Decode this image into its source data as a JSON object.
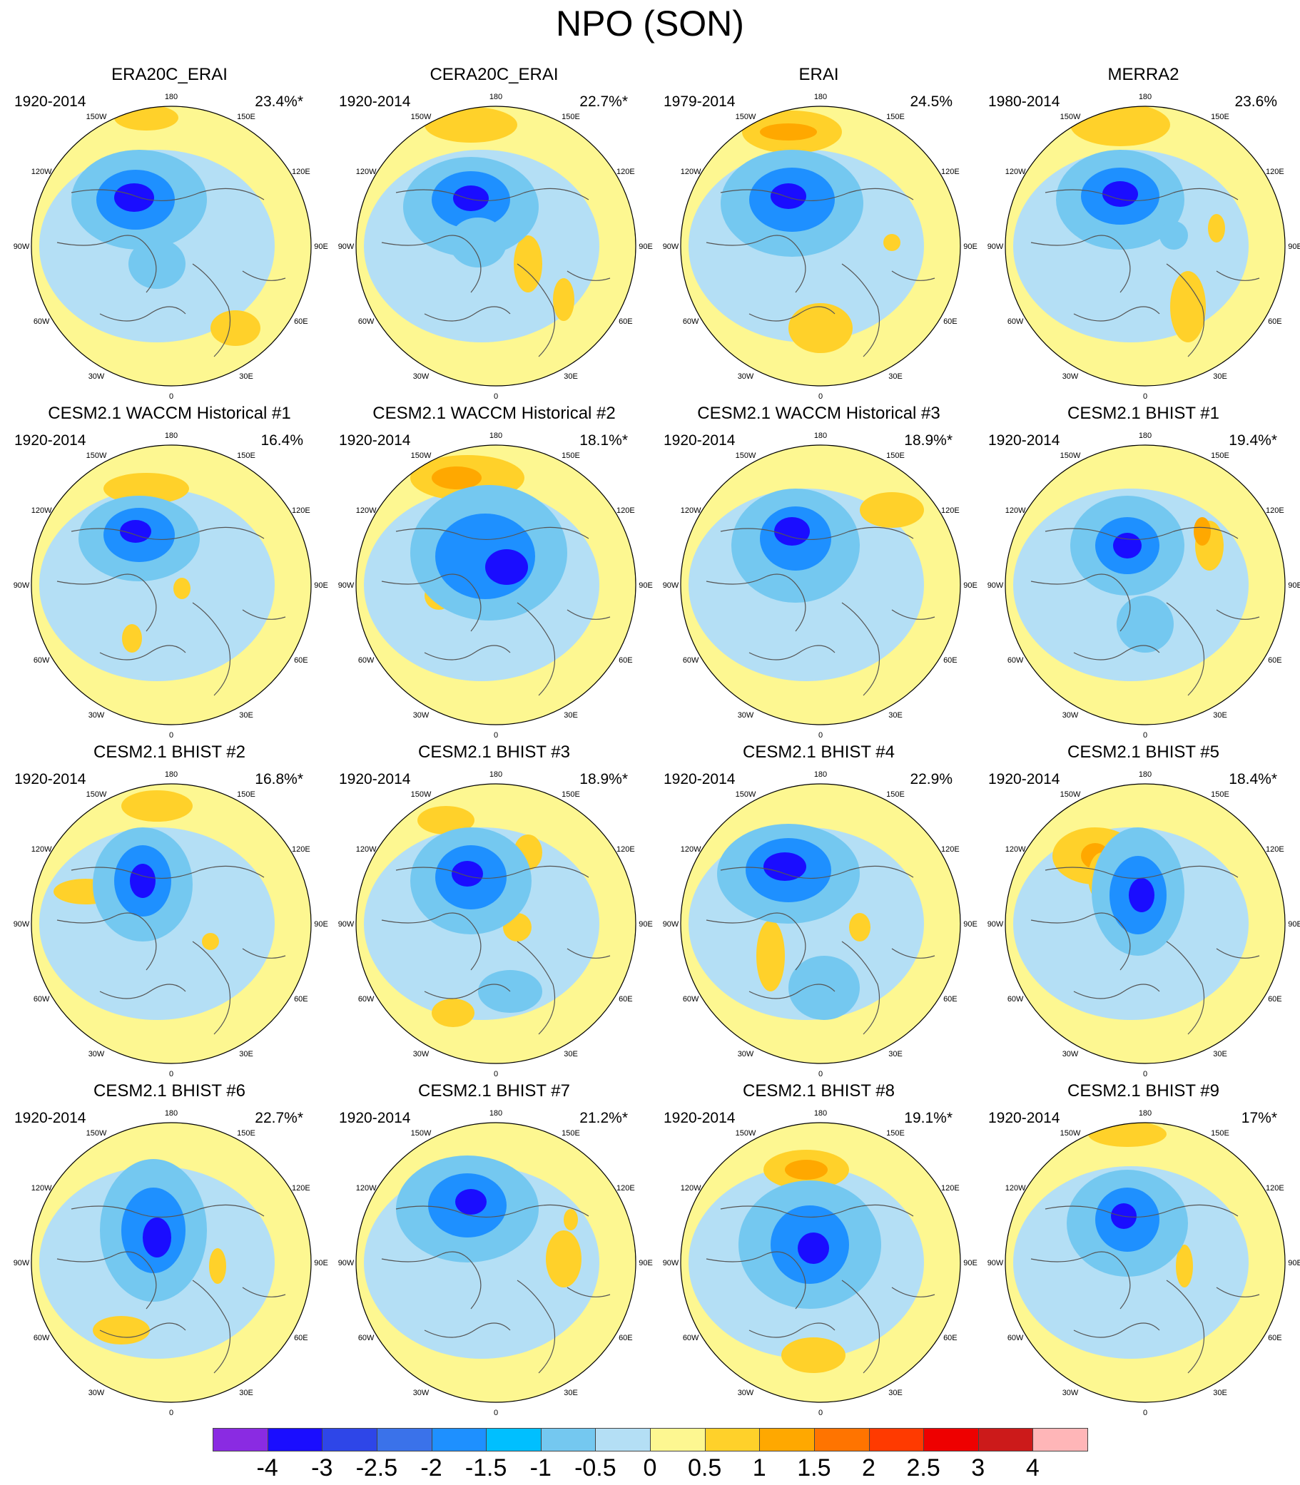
{
  "title": "NPO (SON)",
  "colors": {
    "land_outline": "#555555",
    "background": "#ffffff"
  },
  "longitude_labels": [
    "180",
    "150E",
    "120E",
    "90E",
    "60E",
    "30E",
    "0",
    "30W",
    "60W",
    "90W",
    "120W",
    "150W"
  ],
  "panels": [
    {
      "title": "ERA20C_ERAI",
      "period": "1920-2014",
      "variance": "23.4%*"
    },
    {
      "title": "CERA20C_ERAI",
      "period": "1920-2014",
      "variance": "22.7%*"
    },
    {
      "title": "ERAI",
      "period": "1979-2014",
      "variance": "24.5%"
    },
    {
      "title": "MERRA2",
      "period": "1980-2014",
      "variance": "23.6%"
    },
    {
      "title": "CESM2.1 WACCM Historical #1",
      "period": "1920-2014",
      "variance": "16.4%"
    },
    {
      "title": "CESM2.1 WACCM Historical #2",
      "period": "1920-2014",
      "variance": "18.1%*"
    },
    {
      "title": "CESM2.1 WACCM Historical #3",
      "period": "1920-2014",
      "variance": "18.9%*"
    },
    {
      "title": "CESM2.1 BHIST #1",
      "period": "1920-2014",
      "variance": "19.4%*"
    },
    {
      "title": "CESM2.1 BHIST #2",
      "period": "1920-2014",
      "variance": "16.8%*"
    },
    {
      "title": "CESM2.1 BHIST #3",
      "period": "1920-2014",
      "variance": "18.9%*"
    },
    {
      "title": "CESM2.1 BHIST #4",
      "period": "1920-2014",
      "variance": "22.9%"
    },
    {
      "title": "CESM2.1 BHIST #5",
      "period": "1920-2014",
      "variance": "18.4%*"
    },
    {
      "title": "CESM2.1 BHIST #6",
      "period": "1920-2014",
      "variance": "22.7%*"
    },
    {
      "title": "CESM2.1 BHIST #7",
      "period": "1920-2014",
      "variance": "21.2%*"
    },
    {
      "title": "CESM2.1 BHIST #8",
      "period": "1920-2014",
      "variance": "19.1%*"
    },
    {
      "title": "CESM2.1 BHIST #9",
      "period": "1920-2014",
      "variance": "17%*"
    }
  ],
  "colorbar": {
    "colors": [
      "#8a2be2",
      "#1a0dff",
      "#2e46e8",
      "#3a72ea",
      "#1e90ff",
      "#00bfff",
      "#74c8f0",
      "#b4dff5",
      "#fdf791",
      "#ffd12a",
      "#ffa800",
      "#ff7400",
      "#ff3a00",
      "#ee0000",
      "#cc1a1a",
      "#ffb6b8"
    ],
    "labels": [
      "-4",
      "-3",
      "-2.5",
      "-2",
      "-1.5",
      "-1",
      "-0.5",
      "0",
      "0.5",
      "1",
      "1.5",
      "2",
      "2.5",
      "3",
      "4"
    ]
  }
}
